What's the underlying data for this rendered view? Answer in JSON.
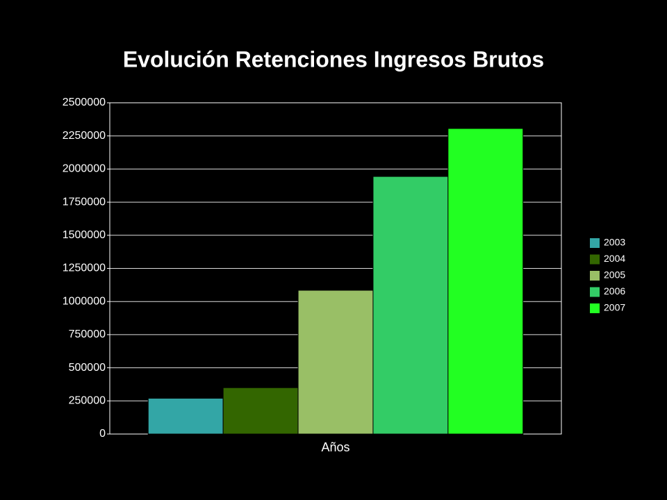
{
  "chart_data": {
    "type": "bar",
    "title": "Evolución Retenciones Ingresos Brutos",
    "categories": [
      "Años"
    ],
    "series": [
      {
        "name": "2003",
        "color": "#33a6a6",
        "values": [
          270000
        ]
      },
      {
        "name": "2004",
        "color": "#336600",
        "values": [
          350000
        ]
      },
      {
        "name": "2005",
        "color": "#99bf66",
        "values": [
          1085000
        ]
      },
      {
        "name": "2006",
        "color": "#33cc66",
        "values": [
          1944000
        ]
      },
      {
        "name": "2007",
        "color": "#22ff22",
        "values": [
          2306000
        ]
      }
    ],
    "ylim": [
      0,
      2500000
    ],
    "yticks": [
      0,
      250000,
      500000,
      750000,
      1000000,
      1250000,
      1500000,
      1750000,
      2000000,
      2250000,
      2500000
    ],
    "grid": true,
    "legend": "right"
  }
}
